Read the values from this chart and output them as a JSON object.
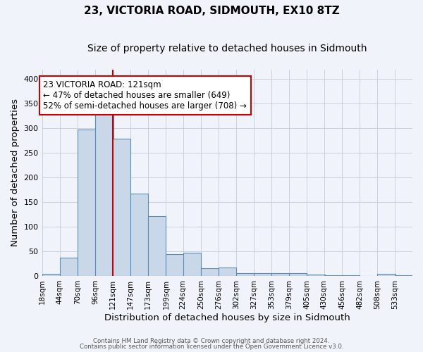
{
  "title": "23, VICTORIA ROAD, SIDMOUTH, EX10 8TZ",
  "subtitle": "Size of property relative to detached houses in Sidmouth",
  "xlabel": "Distribution of detached houses by size in Sidmouth",
  "ylabel": "Number of detached properties",
  "bin_labels": [
    "18sqm",
    "44sqm",
    "70sqm",
    "96sqm",
    "121sqm",
    "147sqm",
    "173sqm",
    "199sqm",
    "224sqm",
    "250sqm",
    "276sqm",
    "302sqm",
    "327sqm",
    "353sqm",
    "379sqm",
    "405sqm",
    "430sqm",
    "456sqm",
    "482sqm",
    "508sqm",
    "533sqm"
  ],
  "bin_edges": [
    18,
    44,
    70,
    96,
    121,
    147,
    173,
    199,
    224,
    250,
    276,
    302,
    327,
    353,
    379,
    405,
    430,
    456,
    482,
    508,
    533
  ],
  "bar_heights": [
    4,
    37,
    297,
    329,
    279,
    168,
    122,
    45,
    47,
    15,
    17,
    5,
    6,
    5,
    6,
    3,
    1,
    1,
    0,
    4,
    1
  ],
  "bar_color": "#c8d8e8",
  "bar_edge_color": "#5b8db8",
  "vline_x": 121,
  "vline_color": "#cc0000",
  "annotation_text": "23 VICTORIA ROAD: 121sqm\n← 47% of detached houses are smaller (649)\n52% of semi-detached houses are larger (708) →",
  "annotation_box_color": "#ffffff",
  "annotation_box_edge_color": "#cc0000",
  "ylim": [
    0,
    420
  ],
  "bg_color": "#f0f4fa",
  "grid_color": "#c8d0dc",
  "footer_line1": "Contains HM Land Registry data © Crown copyright and database right 2024.",
  "footer_line2": "Contains public sector information licensed under the Open Government Licence v3.0.",
  "title_fontsize": 11,
  "subtitle_fontsize": 10,
  "label_fontsize": 9.5,
  "tick_fontsize": 7.5,
  "annotation_fontsize": 8.5
}
